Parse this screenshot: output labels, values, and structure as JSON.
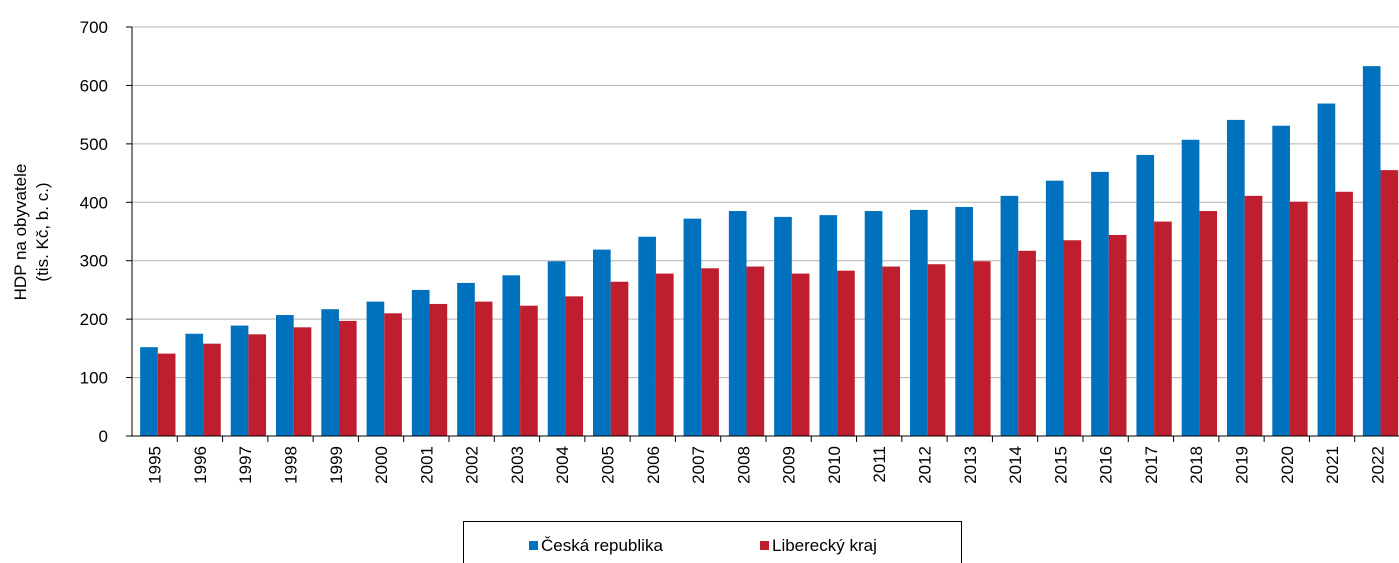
{
  "chart_data": {
    "type": "bar",
    "y_label": [
      "HDP na obyvatele",
      "(tis. Kč, b. c.)"
    ],
    "categories": [
      "1995",
      "1996",
      "1997",
      "1998",
      "1999",
      "2000",
      "2001",
      "2002",
      "2003",
      "2004",
      "2005",
      "2006",
      "2007",
      "2008",
      "2009",
      "2010",
      "2011",
      "2012",
      "2013",
      "2014",
      "2015",
      "2016",
      "2017",
      "2018",
      "2019",
      "2020",
      "2021",
      "2022"
    ],
    "series": [
      {
        "name": "Česká republika",
        "color": "#0071bc",
        "values": [
          152,
          175,
          189,
          207,
          217,
          230,
          250,
          262,
          275,
          299,
          319,
          341,
          372,
          385,
          375,
          378,
          385,
          387,
          392,
          411,
          437,
          452,
          481,
          507,
          541,
          531,
          569,
          633
        ]
      },
      {
        "name": "Liberecký kraj",
        "color": "#be1e2d",
        "values": [
          141,
          158,
          174,
          186,
          197,
          210,
          226,
          230,
          223,
          239,
          264,
          278,
          287,
          290,
          278,
          283,
          290,
          294,
          299,
          317,
          335,
          344,
          367,
          385,
          411,
          401,
          418,
          455
        ]
      }
    ],
    "ylim": [
      0,
      700
    ],
    "yticks": [
      0,
      100,
      200,
      300,
      400,
      500,
      600,
      700
    ],
    "grid": true
  }
}
